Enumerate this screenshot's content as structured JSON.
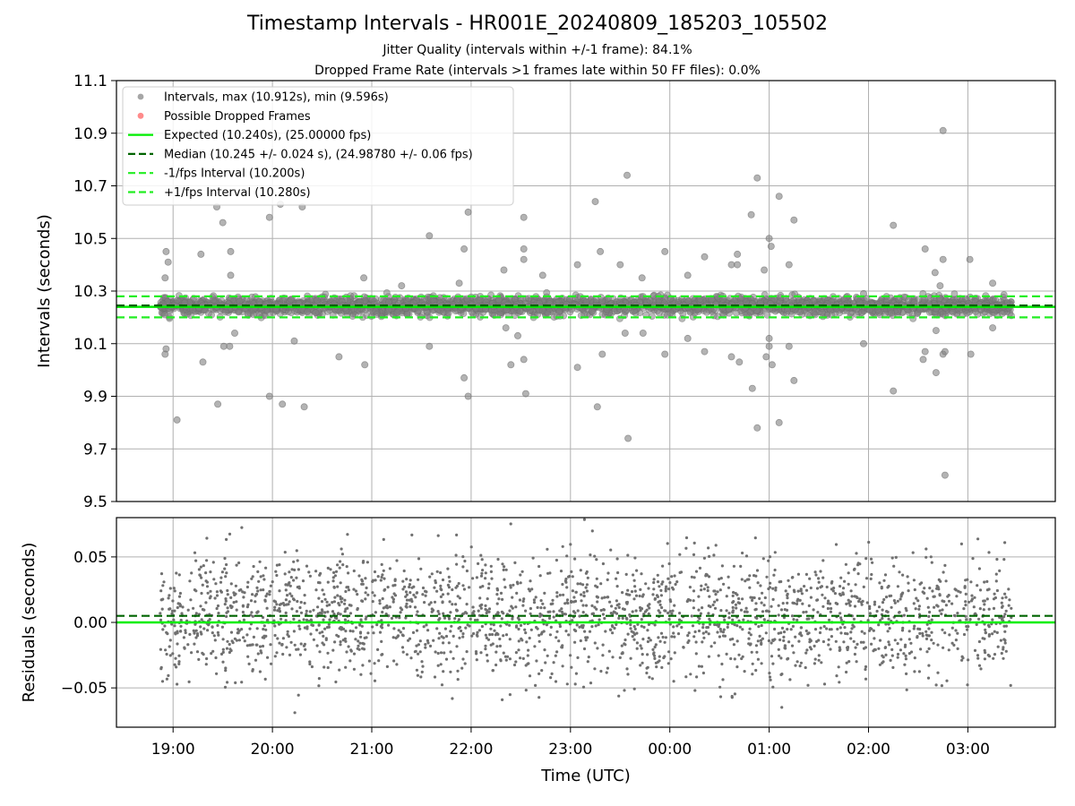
{
  "title": "Timestamp Intervals - HR001E_20240809_185203_105502",
  "subtitle_1": "Jitter Quality (intervals within +/-1 frame): 84.1%",
  "subtitle_2": "Dropped Frame Rate (intervals >1 frames late within 50 FF files): 0.0%",
  "colors": {
    "interval_points": "#808080",
    "dropped_points": "#ff5a5a",
    "expected_line": "#00ee00",
    "median_line": "#006400",
    "fps_band_lines": "#22ee22",
    "grid": "#b0b0b0"
  },
  "chart_data": [
    {
      "type": "scatter",
      "name": "intervals-panel",
      "ylabel": "Intervals (seconds)",
      "xlabel": "",
      "ylim": [
        9.5,
        11.1
      ],
      "yticks": [
        9.5,
        9.7,
        9.9,
        10.1,
        10.3,
        10.5,
        10.7,
        10.9,
        11.1
      ],
      "ytick_labels": [
        "9.5",
        "9.7",
        "9.9",
        "10.1",
        "10.3",
        "10.5",
        "10.7",
        "10.9",
        "11.1"
      ],
      "xlim_hours": [
        18.43,
        27.88
      ],
      "data_range_hours": [
        18.87,
        27.44
      ],
      "grid": true,
      "legend_placement": "upper-left",
      "legend": [
        {
          "label": "Intervals, max (10.912s), min (9.596s)",
          "kind": "marker",
          "color": "#808080"
        },
        {
          "label": "Possible Dropped Frames",
          "kind": "marker",
          "color": "#ff5a5a"
        },
        {
          "label": "Expected (10.240s), (25.00000 fps)",
          "kind": "solid",
          "color": "#00ee00"
        },
        {
          "label": "Median (10.245 +/- 0.024 s), (24.98780 +/- 0.06 fps)",
          "kind": "dashed",
          "color": "#006400"
        },
        {
          "label": "-1/fps Interval (10.200s)",
          "kind": "dashed",
          "color": "#22ee22"
        },
        {
          "label": "+1/fps Interval (10.280s)",
          "kind": "dashed",
          "color": "#22ee22"
        }
      ],
      "reference_lines": {
        "expected": 10.24,
        "median": 10.245,
        "minus_one_frame": 10.2,
        "plus_one_frame": 10.28
      },
      "band": {
        "center": 10.245,
        "spread": 0.024
      },
      "outliers": [
        {
          "t": 18.93,
          "y": 10.45
        },
        {
          "t": 18.95,
          "y": 10.41
        },
        {
          "t": 18.92,
          "y": 10.35
        },
        {
          "t": 18.93,
          "y": 10.08
        },
        {
          "t": 18.92,
          "y": 10.06
        },
        {
          "t": 19.04,
          "y": 9.81
        },
        {
          "t": 19.28,
          "y": 10.44
        },
        {
          "t": 19.3,
          "y": 10.03
        },
        {
          "t": 19.44,
          "y": 10.62
        },
        {
          "t": 19.45,
          "y": 9.87
        },
        {
          "t": 19.5,
          "y": 10.56
        },
        {
          "t": 19.51,
          "y": 10.09
        },
        {
          "t": 19.58,
          "y": 10.45
        },
        {
          "t": 19.57,
          "y": 10.09
        },
        {
          "t": 19.62,
          "y": 10.14
        },
        {
          "t": 19.58,
          "y": 10.36
        },
        {
          "t": 19.97,
          "y": 10.58
        },
        {
          "t": 19.97,
          "y": 9.9
        },
        {
          "t": 20.08,
          "y": 10.63
        },
        {
          "t": 20.1,
          "y": 9.87
        },
        {
          "t": 20.22,
          "y": 10.11
        },
        {
          "t": 20.3,
          "y": 10.62
        },
        {
          "t": 20.32,
          "y": 9.86
        },
        {
          "t": 20.67,
          "y": 10.05
        },
        {
          "t": 20.92,
          "y": 10.35
        },
        {
          "t": 20.93,
          "y": 10.02
        },
        {
          "t": 21.3,
          "y": 10.32
        },
        {
          "t": 21.58,
          "y": 10.51
        },
        {
          "t": 21.58,
          "y": 10.09
        },
        {
          "t": 21.88,
          "y": 10.33
        },
        {
          "t": 21.93,
          "y": 10.46
        },
        {
          "t": 21.93,
          "y": 9.97
        },
        {
          "t": 21.97,
          "y": 10.6
        },
        {
          "t": 21.97,
          "y": 9.9
        },
        {
          "t": 22.33,
          "y": 10.38
        },
        {
          "t": 22.35,
          "y": 10.16
        },
        {
          "t": 22.4,
          "y": 10.02
        },
        {
          "t": 22.47,
          "y": 10.13
        },
        {
          "t": 22.53,
          "y": 10.42
        },
        {
          "t": 22.53,
          "y": 10.46
        },
        {
          "t": 22.53,
          "y": 10.58
        },
        {
          "t": 22.53,
          "y": 10.04
        },
        {
          "t": 22.55,
          "y": 9.91
        },
        {
          "t": 22.72,
          "y": 10.36
        },
        {
          "t": 23.07,
          "y": 10.4
        },
        {
          "t": 23.07,
          "y": 10.01
        },
        {
          "t": 23.25,
          "y": 10.64
        },
        {
          "t": 23.27,
          "y": 9.86
        },
        {
          "t": 23.3,
          "y": 10.45
        },
        {
          "t": 23.32,
          "y": 10.06
        },
        {
          "t": 23.5,
          "y": 10.4
        },
        {
          "t": 23.55,
          "y": 10.14
        },
        {
          "t": 23.57,
          "y": 10.74
        },
        {
          "t": 23.58,
          "y": 9.74
        },
        {
          "t": 23.72,
          "y": 10.35
        },
        {
          "t": 23.73,
          "y": 10.14
        },
        {
          "t": 23.95,
          "y": 10.45
        },
        {
          "t": 23.95,
          "y": 10.06
        },
        {
          "t": 24.18,
          "y": 10.36
        },
        {
          "t": 24.18,
          "y": 10.12
        },
        {
          "t": 24.35,
          "y": 10.43
        },
        {
          "t": 24.35,
          "y": 10.07
        },
        {
          "t": 24.62,
          "y": 10.4
        },
        {
          "t": 24.62,
          "y": 10.05
        },
        {
          "t": 24.68,
          "y": 10.44
        },
        {
          "t": 24.7,
          "y": 10.03
        },
        {
          "t": 24.68,
          "y": 10.4
        },
        {
          "t": 24.82,
          "y": 10.59
        },
        {
          "t": 24.83,
          "y": 9.93
        },
        {
          "t": 24.88,
          "y": 10.73
        },
        {
          "t": 24.88,
          "y": 9.78
        },
        {
          "t": 24.95,
          "y": 10.38
        },
        {
          "t": 24.97,
          "y": 10.05
        },
        {
          "t": 25.0,
          "y": 10.5
        },
        {
          "t": 25.0,
          "y": 10.09
        },
        {
          "t": 25.02,
          "y": 10.47
        },
        {
          "t": 25.03,
          "y": 10.02
        },
        {
          "t": 25.0,
          "y": 10.12
        },
        {
          "t": 25.1,
          "y": 10.66
        },
        {
          "t": 25.1,
          "y": 9.8
        },
        {
          "t": 25.2,
          "y": 10.4
        },
        {
          "t": 25.2,
          "y": 10.09
        },
        {
          "t": 25.25,
          "y": 10.57
        },
        {
          "t": 25.25,
          "y": 9.96
        },
        {
          "t": 25.95,
          "y": 10.29
        },
        {
          "t": 25.95,
          "y": 10.1
        },
        {
          "t": 26.25,
          "y": 10.55
        },
        {
          "t": 26.25,
          "y": 9.92
        },
        {
          "t": 26.57,
          "y": 10.46
        },
        {
          "t": 26.55,
          "y": 10.04
        },
        {
          "t": 26.57,
          "y": 10.07
        },
        {
          "t": 26.67,
          "y": 10.37
        },
        {
          "t": 26.68,
          "y": 10.15
        },
        {
          "t": 26.68,
          "y": 9.99
        },
        {
          "t": 26.72,
          "y": 10.32
        },
        {
          "t": 26.75,
          "y": 10.06
        },
        {
          "t": 26.75,
          "y": 10.91
        },
        {
          "t": 26.77,
          "y": 9.6
        },
        {
          "t": 26.75,
          "y": 10.42
        },
        {
          "t": 26.77,
          "y": 10.07
        },
        {
          "t": 27.02,
          "y": 10.42
        },
        {
          "t": 27.03,
          "y": 10.06
        },
        {
          "t": 27.25,
          "y": 10.16
        },
        {
          "t": 27.25,
          "y": 10.33
        }
      ]
    },
    {
      "type": "scatter",
      "name": "residuals-panel",
      "ylabel": "Residuals (seconds)",
      "xlabel": "Time (UTC)",
      "ylim": [
        -0.08,
        0.08
      ],
      "yticks": [
        -0.05,
        0.0,
        0.05
      ],
      "ytick_labels": [
        "−0.05",
        "0.00",
        "0.05"
      ],
      "xtick_hours": [
        19,
        20,
        21,
        22,
        23,
        24,
        25,
        26,
        27
      ],
      "xtick_labels": [
        "19:00",
        "20:00",
        "21:00",
        "22:00",
        "23:00",
        "00:00",
        "01:00",
        "02:00",
        "03:00"
      ],
      "grid": true,
      "reference_lines": {
        "expected": 0.0,
        "median": 0.005
      },
      "data_range_hours": [
        18.87,
        27.44
      ],
      "spread": 0.033
    }
  ]
}
